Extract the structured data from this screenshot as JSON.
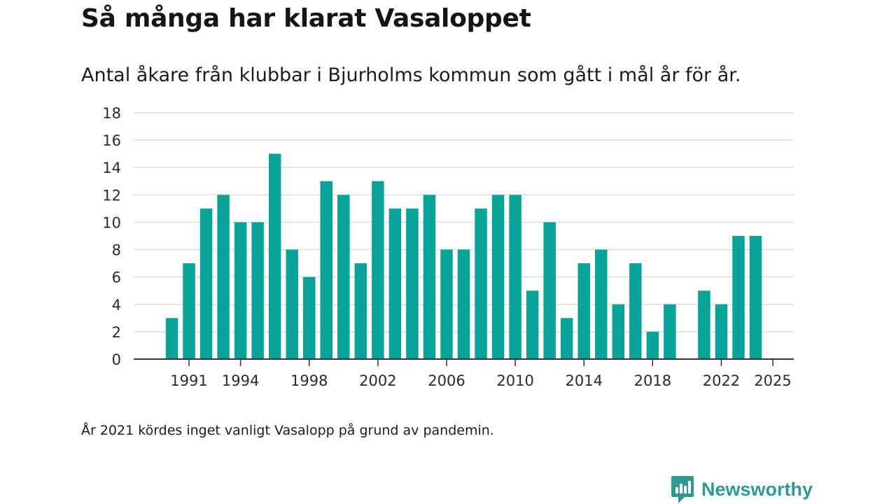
{
  "header": {
    "title": "Så många har klarat Vasaloppet",
    "subtitle": "Antal åkare från klubbar i Bjurholms kommun som gått i mål år för år."
  },
  "footer": {
    "note": "År 2021 kördes inget vanligt Vasalopp på grund av pandemin."
  },
  "brand": {
    "name": "Newsworthy",
    "icon": "newsworthy-logo-icon",
    "color": "#2f9a93"
  },
  "colors": {
    "bar": "#0aa399",
    "grid": "#dcdcdc",
    "axis": "#333333",
    "tick_text": "#2b2b2b"
  },
  "chart_data": {
    "type": "bar",
    "title": "Så många har klarat Vasaloppet",
    "xlabel": "",
    "ylabel": "",
    "ylim": [
      0,
      18
    ],
    "y_ticks": [
      0,
      2,
      4,
      6,
      8,
      10,
      12,
      14,
      16,
      18
    ],
    "x_tick_labels": [
      1991,
      1994,
      1998,
      2002,
      2006,
      2010,
      2014,
      2018,
      2022,
      2025
    ],
    "grid": true,
    "legend": "none",
    "categories": [
      1990,
      1991,
      1992,
      1993,
      1994,
      1995,
      1996,
      1997,
      1998,
      1999,
      2000,
      2001,
      2002,
      2003,
      2004,
      2005,
      2006,
      2007,
      2008,
      2009,
      2010,
      2011,
      2012,
      2013,
      2014,
      2015,
      2016,
      2017,
      2018,
      2019,
      2020,
      2021,
      2022,
      2023,
      2024,
      2025
    ],
    "values": [
      3,
      7,
      11,
      12,
      10,
      10,
      15,
      8,
      6,
      13,
      12,
      7,
      13,
      11,
      11,
      12,
      8,
      8,
      11,
      12,
      12,
      5,
      10,
      3,
      7,
      8,
      4,
      7,
      2,
      4,
      0,
      5,
      4,
      9,
      9,
      null
    ]
  }
}
